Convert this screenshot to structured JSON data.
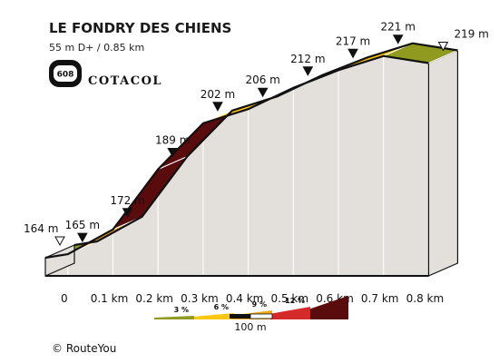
{
  "header": {
    "title": "LE FONDRY DES CHIENS",
    "stats": "55 m D+ / 0.85 km",
    "badge_number": "608",
    "brand": "COTACOL"
  },
  "chart_data": {
    "type": "area",
    "title": "LE FONDRY DES CHIENS",
    "xlabel": "",
    "ylabel": "",
    "x_unit": "km",
    "y_unit": "m",
    "points": [
      {
        "x": 0.0,
        "y": 164,
        "label": "164 m",
        "marker": "start"
      },
      {
        "x": 0.05,
        "y": 165,
        "label": "165 m",
        "marker": "filled"
      },
      {
        "x": 0.15,
        "y": 172,
        "label": "172 m",
        "marker": "filled"
      },
      {
        "x": 0.25,
        "y": 189,
        "label": "189 m",
        "marker": "filled"
      },
      {
        "x": 0.35,
        "y": 202,
        "label": "202 m",
        "marker": "filled"
      },
      {
        "x": 0.45,
        "y": 206,
        "label": "206 m",
        "marker": "filled"
      },
      {
        "x": 0.55,
        "y": 212,
        "label": "212 m",
        "marker": "filled"
      },
      {
        "x": 0.65,
        "y": 217,
        "label": "217 m",
        "marker": "filled"
      },
      {
        "x": 0.75,
        "y": 221,
        "label": "221 m",
        "marker": "filled"
      },
      {
        "x": 0.85,
        "y": 219,
        "label": "219 m",
        "marker": "end"
      }
    ],
    "segment_colors": [
      "#8f9a1f",
      "#f0a81a",
      "#5a0b0b",
      "#5a0b0b",
      "#fdc70f",
      "#f0a81a",
      "#fdc70f",
      "#fdc70f",
      "#8f9a1f"
    ],
    "x_ticks": [
      "0",
      "0.1 km",
      "0.2 km",
      "0.3 km",
      "0.4 km",
      "0.5 km",
      "0.6 km",
      "0.7 km",
      "0.8 km"
    ],
    "legend": [
      {
        "label": "3 %",
        "color": "#8f9a1f"
      },
      {
        "label": "6 %",
        "color": "#fdc70f"
      },
      {
        "label": "9 %",
        "color": "#f0a81a"
      },
      {
        "label": "12 %",
        "color": "#d42a2a"
      },
      {
        "label": "",
        "color": "#5a0b0b"
      }
    ],
    "scale_bar": "100 m"
  },
  "footer": {
    "credit": "© RouteYou"
  },
  "colors": {
    "side": "#e3dfdb",
    "outline": "#111111"
  }
}
